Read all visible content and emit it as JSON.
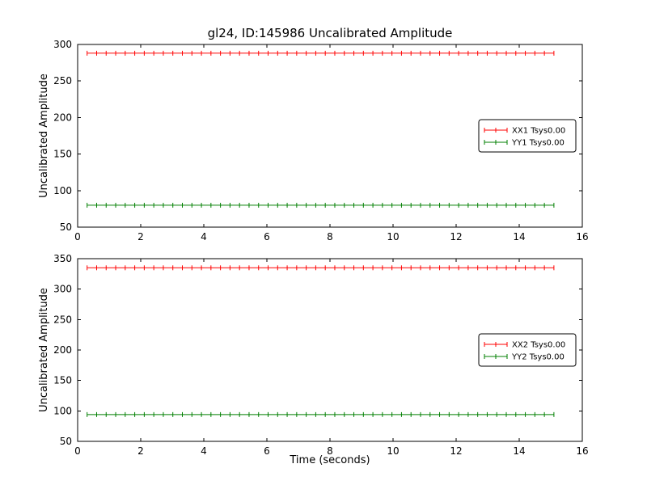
{
  "figure": {
    "title": "gl24, ID:145986 Uncalibrated Amplitude",
    "background": "#ffffff",
    "text_color": "#000000",
    "frame_color": "#000000"
  },
  "chart_data": [
    {
      "type": "line",
      "subplot": "top",
      "title": "gl24, ID:145986 Uncalibrated Amplitude",
      "xlabel": "",
      "ylabel": "Uncalibrated Amplitude",
      "xlim": [
        0,
        16
      ],
      "ylim": [
        50,
        300
      ],
      "xticks": [
        0,
        2,
        4,
        6,
        8,
        10,
        12,
        14,
        16
      ],
      "yticks": [
        50,
        100,
        150,
        200,
        250,
        300
      ],
      "x_start": 0.3,
      "x_end": 15.1,
      "n_points": 50,
      "marker": "plus",
      "grid": false,
      "legend_loc": "center right",
      "series": [
        {
          "name": "XX1 Tsys0.00",
          "color": "#ff0000",
          "value": 288
        },
        {
          "name": "YY1 Tsys0.00",
          "color": "#007f00",
          "value": 80
        }
      ]
    },
    {
      "type": "line",
      "subplot": "bottom",
      "title": "",
      "xlabel": "Time (seconds)",
      "ylabel": "Uncalibrated Amplitude",
      "xlim": [
        0,
        16
      ],
      "ylim": [
        50,
        350
      ],
      "xticks": [
        0,
        2,
        4,
        6,
        8,
        10,
        12,
        14,
        16
      ],
      "yticks": [
        50,
        100,
        150,
        200,
        250,
        300,
        350
      ],
      "x_start": 0.3,
      "x_end": 15.1,
      "n_points": 50,
      "marker": "plus",
      "grid": false,
      "legend_loc": "center right",
      "series": [
        {
          "name": "XX2 Tsys0.00",
          "color": "#ff0000",
          "value": 335
        },
        {
          "name": "YY2 Tsys0.00",
          "color": "#007f00",
          "value": 94
        }
      ]
    }
  ]
}
